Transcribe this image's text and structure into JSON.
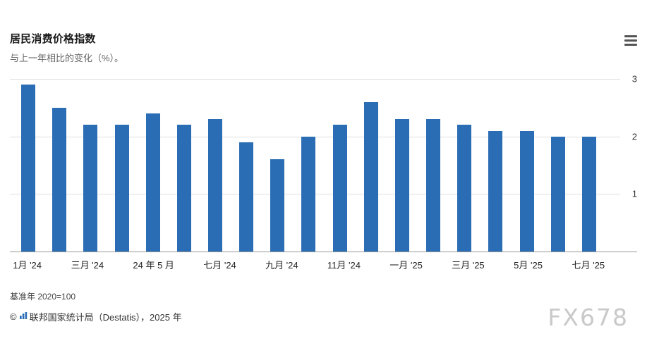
{
  "header": {
    "title": "居民消费价格指数",
    "subtitle": "与上一年相比的变化（%）。"
  },
  "chart_data": {
    "type": "bar",
    "title": "居民消费价格指数",
    "subtitle": "与上一年相比的变化（%）。",
    "ylabel": "",
    "xlabel": "",
    "ylim": [
      0,
      3
    ],
    "y_ticks": [
      1,
      2,
      3
    ],
    "grid": true,
    "axis_side": "right",
    "bar_color": "#2a6db4",
    "bars": [
      {
        "value": 2.9,
        "label": "1月 '24"
      },
      {
        "value": 2.5,
        "label": ""
      },
      {
        "value": 2.2,
        "label": "三月 '24"
      },
      {
        "value": 2.2,
        "label": ""
      },
      {
        "value": 2.4,
        "label": "24 年 5 月"
      },
      {
        "value": 2.2,
        "label": ""
      },
      {
        "value": 2.3,
        "label": "七月 '24"
      },
      {
        "value": 1.9,
        "label": ""
      },
      {
        "value": 1.6,
        "label": "九月 '24"
      },
      {
        "value": 2.0,
        "label": ""
      },
      {
        "value": 2.2,
        "label": "11月 '24"
      },
      {
        "value": 2.6,
        "label": ""
      },
      {
        "value": 2.3,
        "label": "一月 '25"
      },
      {
        "value": 2.3,
        "label": ""
      },
      {
        "value": 2.2,
        "label": "三月 '25"
      },
      {
        "value": 2.1,
        "label": ""
      },
      {
        "value": 2.1,
        "label": "5月 '25"
      },
      {
        "value": 2.0,
        "label": ""
      },
      {
        "value": 2.0,
        "label": "七月 '25"
      }
    ]
  },
  "footer": {
    "note": "基准年 2020=100",
    "copyright": "©",
    "source": "联邦国家统计局（Destatis），2025 年"
  },
  "watermark": "FX678"
}
